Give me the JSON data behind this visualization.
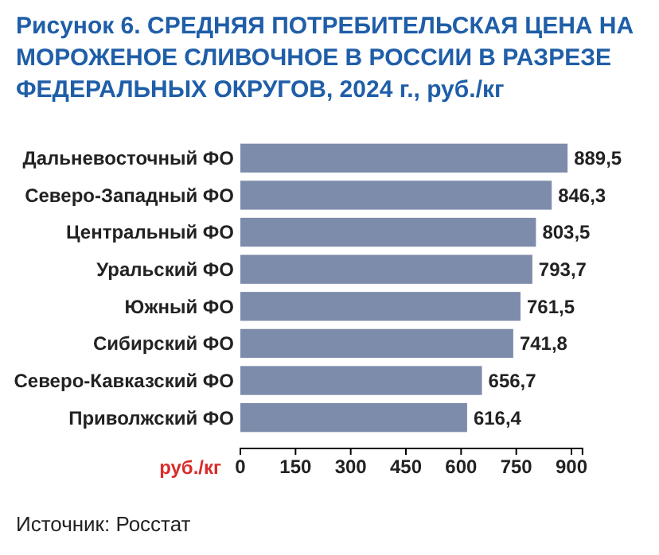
{
  "chart_data": {
    "type": "bar",
    "orientation": "horizontal",
    "title": "Рисунок 6. СРЕДНЯЯ ПОТРЕБИТЕЛЬСКАЯ ЦЕНА НА МОРОЖЕНОЕ СЛИВОЧНОЕ В РОССИИ В РАЗРЕЗЕ ФЕДЕРАЛЬНЫХ ОКРУГОВ, 2024 г., руб./кг",
    "categories": [
      "Дальневосточный ФО",
      "Северо-Западный ФО",
      "Центральный ФО",
      "Уральский ФО",
      "Южный ФО",
      "Сибирский ФО",
      "Северо-Кавказский ФО",
      "Приволжский ФО"
    ],
    "values": [
      889.5,
      846.3,
      803.5,
      793.7,
      761.5,
      741.8,
      656.7,
      616.4
    ],
    "value_labels": [
      "889,5",
      "846,3",
      "803,5",
      "793,7",
      "761,5",
      "741,8",
      "656,7",
      "616,4"
    ],
    "color": "#7d8cab",
    "xlabel": "руб./кг",
    "xlim": [
      0,
      930
    ],
    "xticks": [
      0,
      150,
      300,
      450,
      600,
      750,
      900
    ],
    "annotations": [
      "Источник: Росстат"
    ]
  }
}
